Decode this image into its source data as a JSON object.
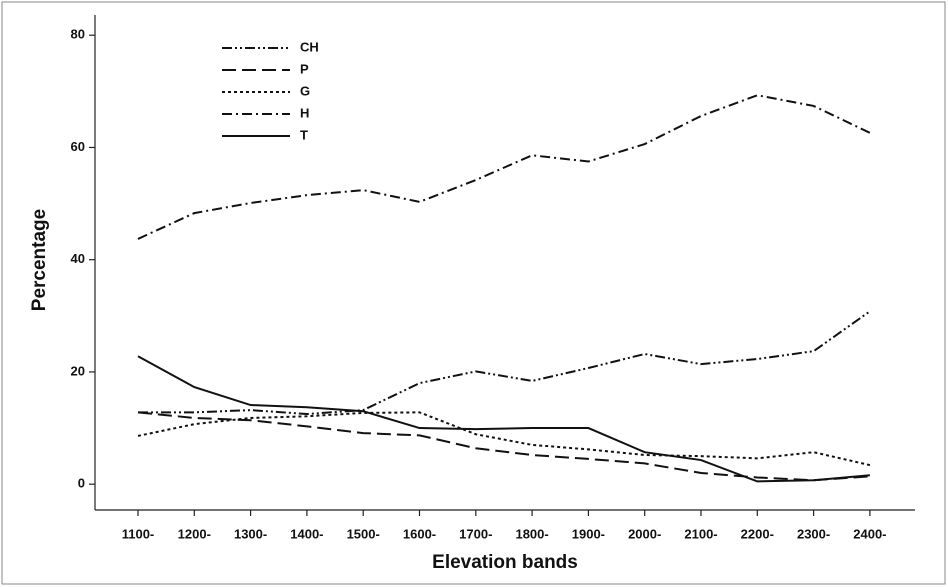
{
  "chart_data": {
    "type": "line",
    "x_label": "Elevation bands",
    "y_label": "Percentage",
    "categories": [
      "1100-",
      "1200-",
      "1300-",
      "1400-",
      "1500-",
      "1600-",
      "1700-",
      "1800-",
      "1900-",
      "2000-",
      "2100-",
      "2200-",
      "2300-",
      "2400-"
    ],
    "ylim": [
      -4.6,
      83.6
    ],
    "yticks": [
      0,
      20,
      40,
      60,
      80
    ],
    "legend": "top-left",
    "grid": false,
    "series": [
      {
        "name": "CH",
        "color": "#111111",
        "style": "dash-dot-dot",
        "values": [
          12.8,
          12.8,
          13.2,
          12.5,
          13.2,
          18.0,
          20.1,
          18.4,
          20.7,
          23.2,
          21.4,
          22.3,
          23.7,
          30.8
        ]
      },
      {
        "name": "P",
        "color": "#111111",
        "style": "long-dash",
        "values": [
          12.8,
          11.8,
          11.4,
          10.3,
          9.1,
          8.7,
          6.4,
          5.2,
          4.5,
          3.7,
          2.0,
          1.2,
          0.7,
          1.4
        ]
      },
      {
        "name": "G",
        "color": "#111111",
        "style": "dotted",
        "values": [
          8.6,
          10.7,
          11.8,
          12.1,
          12.7,
          12.8,
          8.9,
          7.0,
          6.2,
          5.2,
          5.0,
          4.6,
          5.7,
          3.4
        ]
      },
      {
        "name": "H",
        "color": "#111111",
        "style": "dash-dot",
        "values": [
          43.7,
          48.3,
          50.1,
          51.5,
          52.4,
          50.3,
          54.2,
          58.6,
          57.5,
          60.6,
          65.6,
          69.3,
          67.4,
          62.6
        ]
      },
      {
        "name": "T",
        "color": "#111111",
        "style": "solid",
        "values": [
          22.8,
          17.3,
          14.1,
          13.7,
          13.0,
          10.0,
          9.8,
          10.0,
          10.0,
          5.7,
          4.3,
          0.5,
          0.7,
          1.6
        ]
      }
    ]
  }
}
